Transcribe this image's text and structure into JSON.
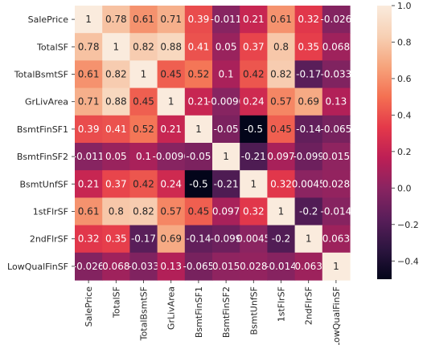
{
  "chart_data": {
    "type": "heatmap",
    "title": "",
    "xlabel": "",
    "ylabel": "",
    "x_labels": [
      "SalePrice",
      "TotalSF",
      "TotalBsmtSF",
      "GrLivArea",
      "BsmtFinSF1",
      "BsmtFinSF2",
      "BsmtUnfSF",
      "1stFlrSF",
      "2ndFlrSF",
      "LowQualFinSF"
    ],
    "y_labels": [
      "SalePrice",
      "TotalSF",
      "TotalBsmtSF",
      "GrLivArea",
      "BsmtFinSF1",
      "BsmtFinSF2",
      "BsmtUnfSF",
      "1stFlrSF",
      "2ndFlrSF",
      "LowQualFinSF"
    ],
    "values": [
      [
        1,
        0.78,
        0.61,
        0.71,
        0.39,
        -0.011,
        0.21,
        0.61,
        0.32,
        -0.026
      ],
      [
        0.78,
        1,
        0.82,
        0.88,
        0.41,
        0.05,
        0.37,
        0.8,
        0.35,
        0.068
      ],
      [
        0.61,
        0.82,
        1,
        0.45,
        0.52,
        0.1,
        0.42,
        0.82,
        -0.17,
        -0.033
      ],
      [
        0.71,
        0.88,
        0.45,
        1,
        0.21,
        -0.0096,
        0.24,
        0.57,
        0.69,
        0.13
      ],
      [
        0.39,
        0.41,
        0.52,
        0.21,
        1,
        -0.05,
        -0.5,
        0.45,
        -0.14,
        -0.065
      ],
      [
        -0.011,
        0.05,
        0.1,
        -0.0096,
        -0.05,
        1,
        -0.21,
        0.097,
        -0.099,
        0.015
      ],
      [
        0.21,
        0.37,
        0.42,
        0.24,
        -0.5,
        -0.21,
        1,
        0.32,
        0.0045,
        0.028
      ],
      [
        0.61,
        0.8,
        0.82,
        0.57,
        0.45,
        0.097,
        0.32,
        1,
        -0.2,
        -0.014
      ],
      [
        0.32,
        0.35,
        -0.17,
        0.69,
        -0.14,
        -0.099,
        0.0045,
        -0.2,
        1,
        0.063
      ],
      [
        -0.026,
        0.068,
        -0.033,
        0.13,
        -0.065,
        0.015,
        0.028,
        -0.014,
        0.063,
        1
      ]
    ],
    "cell_text": [
      [
        "1",
        "0.78",
        "0.61",
        "0.71",
        "0.39",
        "-0.011",
        "0.21",
        "0.61",
        "0.32",
        "-0.026"
      ],
      [
        "0.78",
        "1",
        "0.82",
        "0.88",
        "0.41",
        "0.05",
        "0.37",
        "0.8",
        "0.35",
        "0.068"
      ],
      [
        "0.61",
        "0.82",
        "1",
        "0.45",
        "0.52",
        "0.1",
        "0.42",
        "0.82",
        "-0.17",
        "-0.033"
      ],
      [
        "0.71",
        "0.88",
        "0.45",
        "1",
        "0.21",
        "-0.0096",
        "0.24",
        "0.57",
        "0.69",
        "0.13"
      ],
      [
        "0.39",
        "0.41",
        "0.52",
        "0.21",
        "1",
        "-0.05",
        "-0.5",
        "0.45",
        "-0.14",
        "-0.065"
      ],
      [
        "-0.011",
        "0.05",
        "0.1",
        "-0.0096",
        "-0.05",
        "1",
        "-0.21",
        "0.097",
        "-0.099",
        "0.015"
      ],
      [
        "0.21",
        "0.37",
        "0.42",
        "0.24",
        "-0.5",
        "-0.21",
        "1",
        "0.32",
        "0.0045",
        "0.028"
      ],
      [
        "0.61",
        "0.8",
        "0.82",
        "0.57",
        "0.45",
        "0.097",
        "0.32",
        "1",
        "-0.2",
        "-0.014"
      ],
      [
        "0.32",
        "0.35",
        "-0.17",
        "0.69",
        "-0.14",
        "-0.099",
        "0.0045",
        "-0.2",
        "1",
        "0.063"
      ],
      [
        "-0.026",
        "0.068",
        "-0.033",
        "0.13",
        "-0.065",
        "0.015",
        "0.028",
        "-0.014",
        "0.063",
        "1"
      ]
    ],
    "vmin": -0.5,
    "vmax": 1.0,
    "colorbar_ticks": [
      1.0,
      0.8,
      0.6,
      0.4,
      0.2,
      0.0,
      -0.2,
      -0.4
    ],
    "colorbar_tick_labels": [
      "1.0",
      "0.8",
      "0.6",
      "0.4",
      "0.2",
      "0.0",
      "−0.2",
      "−0.4"
    ],
    "colormap": "rocket",
    "colormap_stops": [
      "#03051a",
      "#2d1540",
      "#5a1e5a",
      "#8a2461",
      "#bd1f55",
      "#e4394a",
      "#f47052",
      "#f6a47c",
      "#f7d0b4",
      "#faebdd"
    ],
    "grid": false,
    "legend": "colorbar-right"
  }
}
